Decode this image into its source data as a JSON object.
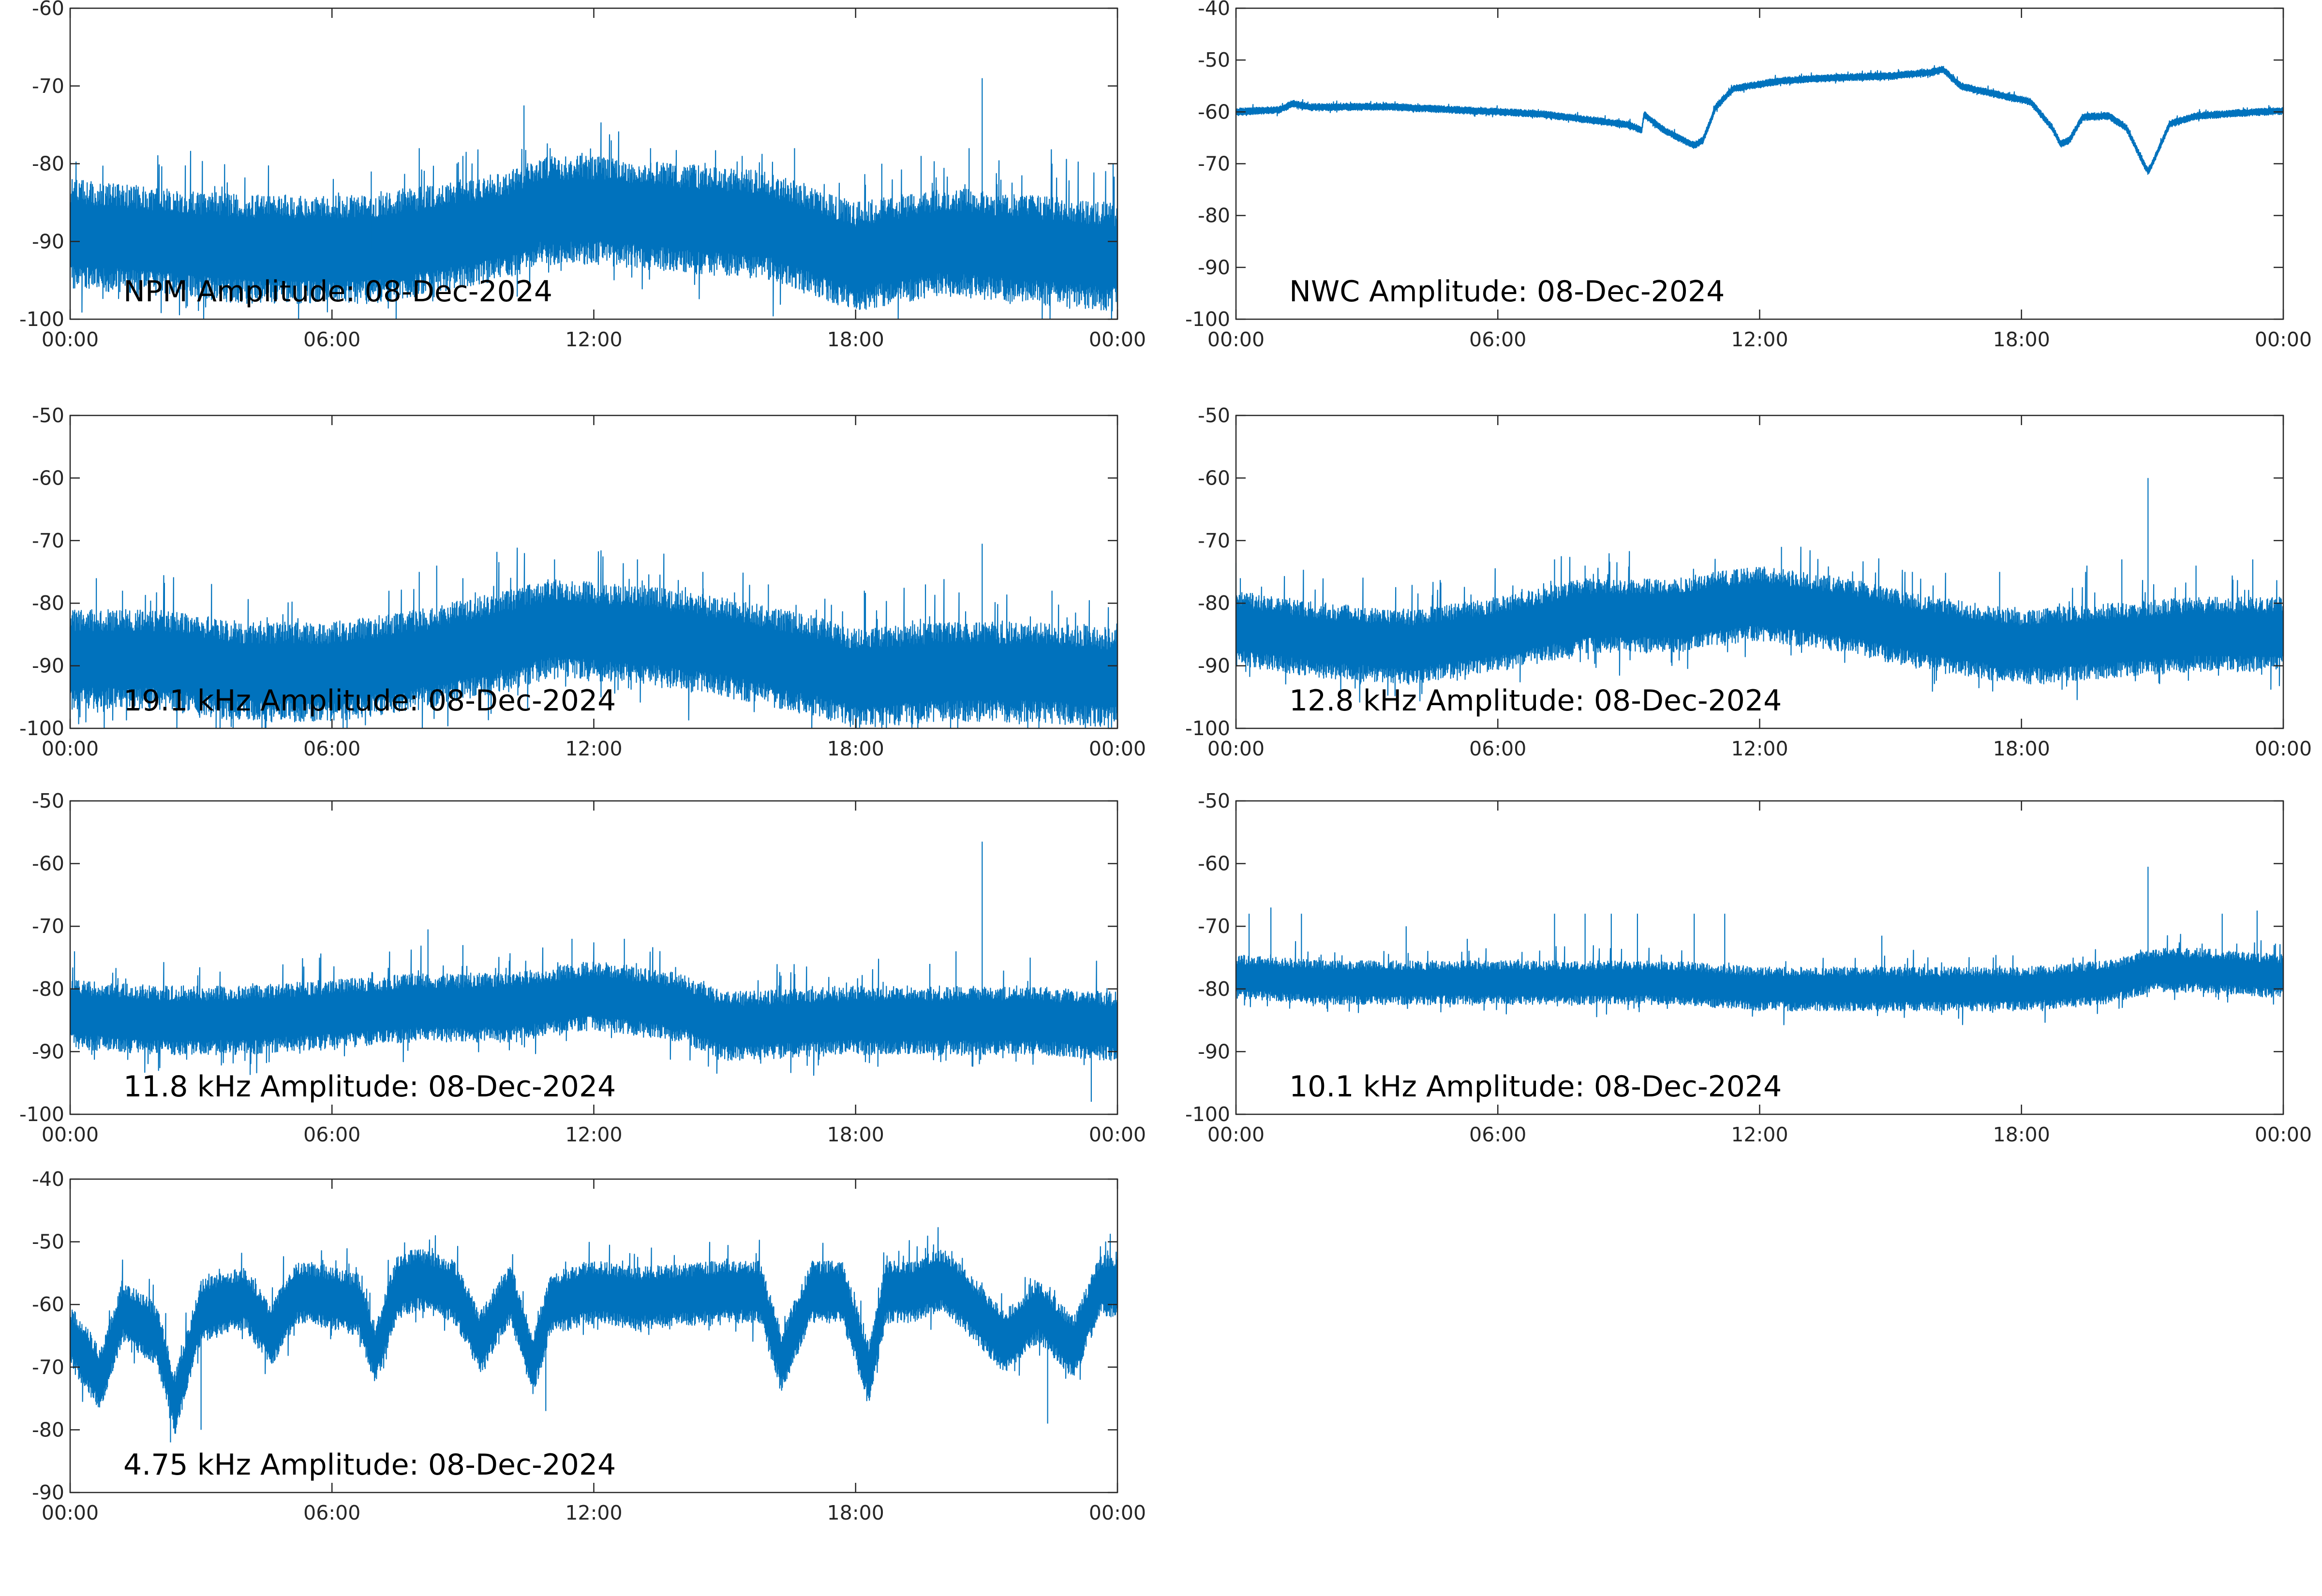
{
  "colors": {
    "series": "#0072BD",
    "axes": "#262626",
    "background": "#ffffff"
  },
  "chart_data": [
    {
      "type": "line",
      "title": "NPM Amplitude: 08-Dec-2024",
      "x_tick_labels": [
        "00:00",
        "06:00",
        "12:00",
        "18:00",
        "00:00"
      ],
      "xlim": [
        0,
        24
      ],
      "ylim": [
        -100,
        -60
      ],
      "y_ticks": [
        -100,
        -90,
        -80,
        -70,
        -60
      ],
      "grid": false,
      "series": [
        {
          "baseline": [
            [
              0,
              -89
            ],
            [
              2,
              -90
            ],
            [
              4,
              -91
            ],
            [
              6,
              -91
            ],
            [
              7,
              -91
            ],
            [
              8,
              -90
            ],
            [
              10,
              -88
            ],
            [
              10.8,
              -86
            ],
            [
              12,
              -86
            ],
            [
              14,
              -87
            ],
            [
              16,
              -88
            ],
            [
              17,
              -90
            ],
            [
              18,
              -92
            ],
            [
              19,
              -91
            ],
            [
              20,
              -90
            ],
            [
              22,
              -91
            ],
            [
              24,
              -92
            ]
          ],
          "noise_amplitude": 7,
          "spikes": [
            [
              6.9,
              -81
            ],
            [
              8,
              -78
            ],
            [
              9,
              -79
            ],
            [
              10.4,
              -72.5
            ],
            [
              11,
              -78
            ],
            [
              12.4,
              -77
            ],
            [
              13.3,
              -78
            ],
            [
              15.4,
              -79
            ],
            [
              16.6,
              -78
            ],
            [
              18.6,
              -80
            ],
            [
              19.5,
              -79
            ],
            [
              20.6,
              -78
            ],
            [
              20.9,
              -69
            ],
            [
              22.5,
              -80
            ],
            [
              23.9,
              -80
            ]
          ]
        }
      ]
    },
    {
      "type": "line",
      "title": "NWC Amplitude: 08-Dec-2024",
      "x_tick_labels": [
        "00:00",
        "06:00",
        "12:00",
        "18:00",
        "00:00"
      ],
      "xlim": [
        0,
        24
      ],
      "ylim": [
        -100,
        -40
      ],
      "y_ticks": [
        -100,
        -90,
        -80,
        -70,
        -60,
        -50,
        -40
      ],
      "grid": false,
      "series": [
        {
          "baseline": [
            [
              0,
              -60
            ],
            [
              1,
              -59.6
            ],
            [
              1.3,
              -58.4
            ],
            [
              1.7,
              -59.1
            ],
            [
              3.5,
              -59
            ],
            [
              5,
              -59.6
            ],
            [
              7,
              -60.4
            ],
            [
              9,
              -62.5
            ],
            [
              9.3,
              -63.5
            ],
            [
              9.35,
              -60.5
            ],
            [
              9.8,
              -63.5
            ],
            [
              10.5,
              -66.5
            ],
            [
              10.7,
              -65.5
            ],
            [
              11,
              -59
            ],
            [
              11.4,
              -55.5
            ],
            [
              12.5,
              -54
            ],
            [
              14,
              -53.3
            ],
            [
              15,
              -53.1
            ],
            [
              16,
              -52.3
            ],
            [
              16.2,
              -51.8
            ],
            [
              16.6,
              -55
            ],
            [
              17.4,
              -56.6
            ],
            [
              18.2,
              -58
            ],
            [
              18.7,
              -63
            ],
            [
              18.9,
              -66.2
            ],
            [
              19.1,
              -65.5
            ],
            [
              19.4,
              -61
            ],
            [
              20,
              -60.8
            ],
            [
              20.4,
              -63
            ],
            [
              20.8,
              -70
            ],
            [
              20.9,
              -71.5
            ],
            [
              21,
              -70
            ],
            [
              21.4,
              -62.3
            ],
            [
              22,
              -60.8
            ],
            [
              23,
              -60.2
            ],
            [
              24,
              -59.8
            ]
          ],
          "noise_amplitude": 0.7,
          "spikes": []
        }
      ]
    },
    {
      "type": "line",
      "title": "19.1 kHz Amplitude: 08-Dec-2024",
      "x_tick_labels": [
        "00:00",
        "06:00",
        "12:00",
        "18:00",
        "00:00"
      ],
      "xlim": [
        0,
        24
      ],
      "ylim": [
        -100,
        -50
      ],
      "y_ticks": [
        -100,
        -90,
        -80,
        -70,
        -60,
        -50
      ],
      "grid": false,
      "series": [
        {
          "baseline": [
            [
              0,
              -89
            ],
            [
              2,
              -89
            ],
            [
              4,
              -91
            ],
            [
              6,
              -91
            ],
            [
              8,
              -89
            ],
            [
              10,
              -86
            ],
            [
              11,
              -84
            ],
            [
              13,
              -85
            ],
            [
              15,
              -87
            ],
            [
              17,
              -90
            ],
            [
              18,
              -92
            ],
            [
              20,
              -91
            ],
            [
              22,
              -91
            ],
            [
              24,
              -92
            ]
          ],
          "noise_amplitude": 8,
          "spikes": [
            [
              0.6,
              -76
            ],
            [
              1.2,
              -78
            ],
            [
              8,
              -75
            ],
            [
              8.4,
              -74
            ],
            [
              9,
              -76
            ],
            [
              11.1,
              -73
            ],
            [
              13,
              -73
            ],
            [
              14.5,
              -75
            ],
            [
              16,
              -77
            ],
            [
              18.2,
              -78
            ],
            [
              19.6,
              -77
            ],
            [
              20.9,
              -70.5
            ],
            [
              22.5,
              -78
            ]
          ]
        }
      ]
    },
    {
      "type": "line",
      "title": "12.8 kHz Amplitude: 08-Dec-2024",
      "x_tick_labels": [
        "00:00",
        "06:00",
        "12:00",
        "18:00",
        "00:00"
      ],
      "xlim": [
        0,
        24
      ],
      "ylim": [
        -100,
        -50
      ],
      "y_ticks": [
        -100,
        -90,
        -80,
        -70,
        -60,
        -50
      ],
      "grid": false,
      "series": [
        {
          "baseline": [
            [
              0,
              -84
            ],
            [
              2,
              -86
            ],
            [
              4,
              -87
            ],
            [
              6,
              -85
            ],
            [
              8,
              -82
            ],
            [
              10,
              -82
            ],
            [
              12,
              -80
            ],
            [
              14,
              -82
            ],
            [
              16,
              -85
            ],
            [
              18,
              -87
            ],
            [
              20,
              -86
            ],
            [
              22,
              -85
            ],
            [
              24,
              -85
            ]
          ],
          "noise_amplitude": 6,
          "spikes": [
            [
              0.1,
              -76
            ],
            [
              7.3,
              -73
            ],
            [
              8,
              -74
            ],
            [
              12.5,
              -71
            ],
            [
              15.5,
              -75
            ],
            [
              17.5,
              -75
            ],
            [
              19.5,
              -74
            ],
            [
              20.3,
              -73
            ],
            [
              20.9,
              -60
            ],
            [
              22,
              -74
            ],
            [
              23.3,
              -73
            ]
          ]
        }
      ]
    },
    {
      "type": "line",
      "title": "11.8 kHz Amplitude: 08-Dec-2024",
      "x_tick_labels": [
        "00:00",
        "06:00",
        "12:00",
        "18:00",
        "00:00"
      ],
      "xlim": [
        0,
        24
      ],
      "ylim": [
        -100,
        -50
      ],
      "y_ticks": [
        -100,
        -90,
        -80,
        -70,
        -60,
        -50
      ],
      "grid": false,
      "series": [
        {
          "baseline": [
            [
              0,
              -84
            ],
            [
              2,
              -85
            ],
            [
              4,
              -85
            ],
            [
              6,
              -84
            ],
            [
              8,
              -83
            ],
            [
              10,
              -83
            ],
            [
              12,
              -81
            ],
            [
              14,
              -83
            ],
            [
              15,
              -86
            ],
            [
              18,
              -85
            ],
            [
              20,
              -85
            ],
            [
              22,
              -85
            ],
            [
              24,
              -86
            ]
          ],
          "noise_amplitude": 5.5,
          "spikes": [
            [
              0.1,
              -74
            ],
            [
              8.2,
              -70.5
            ],
            [
              9,
              -73
            ],
            [
              11.5,
              -72
            ],
            [
              12.7,
              -72
            ],
            [
              16.2,
              -77
            ],
            [
              19.7,
              -76
            ],
            [
              20.3,
              -74
            ],
            [
              20.9,
              -56.5
            ],
            [
              22,
              -75
            ],
            [
              23.4,
              -98
            ]
          ]
        }
      ]
    },
    {
      "type": "line",
      "title": "10.1 kHz Amplitude: 08-Dec-2024",
      "x_tick_labels": [
        "00:00",
        "06:00",
        "12:00",
        "18:00",
        "00:00"
      ],
      "xlim": [
        0,
        24
      ],
      "ylim": [
        -100,
        -50
      ],
      "y_ticks": [
        -100,
        -90,
        -80,
        -70,
        -60,
        -50
      ],
      "grid": false,
      "series": [
        {
          "baseline": [
            [
              0,
              -78
            ],
            [
              2,
              -79
            ],
            [
              4,
              -79
            ],
            [
              6,
              -79
            ],
            [
              8,
              -79
            ],
            [
              10,
              -79
            ],
            [
              12,
              -80
            ],
            [
              14,
              -80
            ],
            [
              16,
              -80
            ],
            [
              18,
              -80
            ],
            [
              20,
              -79
            ],
            [
              21,
              -77
            ],
            [
              22,
              -77
            ],
            [
              24,
              -78
            ]
          ],
          "noise_amplitude": 3.5,
          "spikes": [
            [
              0.3,
              -68
            ],
            [
              0.8,
              -67
            ],
            [
              1.5,
              -68
            ],
            [
              3.9,
              -70
            ],
            [
              5.3,
              -72
            ],
            [
              7.3,
              -68
            ],
            [
              8,
              -68
            ],
            [
              8.6,
              -68
            ],
            [
              9.2,
              -68
            ],
            [
              10.5,
              -68
            ],
            [
              11.2,
              -68
            ],
            [
              14.8,
              -71.5
            ],
            [
              20.9,
              -60.5
            ],
            [
              22.6,
              -68
            ],
            [
              23.4,
              -67.5
            ]
          ]
        }
      ]
    },
    {
      "type": "line",
      "title": "4.75 kHz Amplitude: 08-Dec-2024",
      "x_tick_labels": [
        "00:00",
        "06:00",
        "12:00",
        "18:00",
        "00:00"
      ],
      "xlim": [
        0,
        24
      ],
      "ylim": [
        -90,
        -40
      ],
      "y_ticks": [
        -90,
        -80,
        -70,
        -60,
        -50,
        -40
      ],
      "grid": false,
      "series": [
        {
          "baseline": [
            [
              0,
              -65
            ],
            [
              0.7,
              -72
            ],
            [
              1.2,
              -61
            ],
            [
              2,
              -65
            ],
            [
              2.4,
              -76
            ],
            [
              3,
              -61
            ],
            [
              4,
              -59
            ],
            [
              4.6,
              -65
            ],
            [
              5.2,
              -58
            ],
            [
              6,
              -59
            ],
            [
              6.6,
              -60
            ],
            [
              7,
              -68
            ],
            [
              7.5,
              -57
            ],
            [
              8,
              -56
            ],
            [
              8.8,
              -58
            ],
            [
              9.4,
              -66
            ],
            [
              10.1,
              -58
            ],
            [
              10.6,
              -70
            ],
            [
              11,
              -60
            ],
            [
              12,
              -58
            ],
            [
              13,
              -59
            ],
            [
              15,
              -58
            ],
            [
              15.8,
              -58
            ],
            [
              16.3,
              -69
            ],
            [
              17,
              -58
            ],
            [
              17.7,
              -58
            ],
            [
              18.3,
              -71
            ],
            [
              18.7,
              -58
            ],
            [
              19.3,
              -58
            ],
            [
              20,
              -56
            ],
            [
              20.6,
              -60
            ],
            [
              21.4,
              -66
            ],
            [
              22.2,
              -61
            ],
            [
              23,
              -67
            ],
            [
              23.6,
              -57
            ],
            [
              24,
              -57
            ]
          ],
          "noise_amplitude": 5,
          "spikes": [
            [
              2.3,
              -82
            ],
            [
              3,
              -80
            ],
            [
              8.3,
              -51
            ],
            [
              10.9,
              -77
            ],
            [
              19.6,
              -51
            ],
            [
              22.4,
              -79
            ]
          ]
        }
      ]
    }
  ]
}
